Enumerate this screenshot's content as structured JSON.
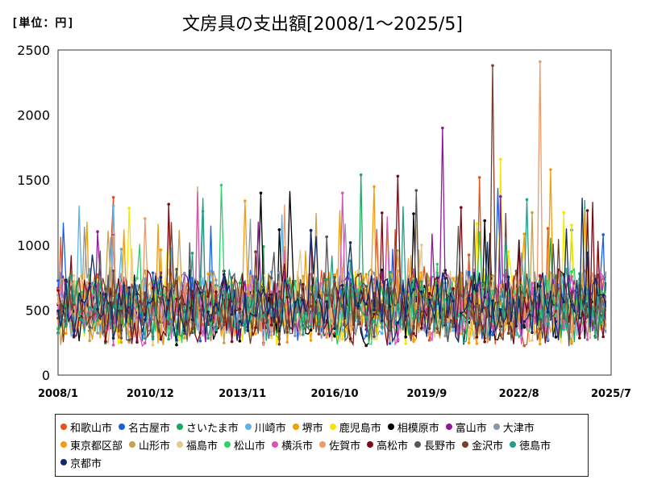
{
  "unit_label": "[単位：円]",
  "chart_data": {
    "type": "line",
    "title": "文房具の支出額[2008/1～2025/5]",
    "xlabel": "",
    "ylabel": "",
    "ylim": [
      0,
      2500
    ],
    "yticks": [
      0,
      500,
      1000,
      1500,
      2000,
      2500
    ],
    "xticks": [
      "2008/1",
      "2010/12",
      "2013/11",
      "2016/10",
      "2019/9",
      "2022/8",
      "2025/7"
    ],
    "x_start": "2008-01",
    "x_end": "2025-07",
    "grid": false,
    "legend_position": "bottom",
    "series": [
      {
        "name": "和歌山市",
        "color": "#e8501c",
        "peak": {
          "date": "2021-05",
          "value": 1520
        }
      },
      {
        "name": "名古屋市",
        "color": "#1a5fe0",
        "peak": {
          "date": "2025-04",
          "value": 1080
        }
      },
      {
        "name": "さいたま市",
        "color": "#1aa860",
        "peak": {
          "date": "2017-08",
          "value": 1540
        }
      },
      {
        "name": "川崎市",
        "color": "#5ab4e8",
        "peak": {
          "date": "2009-10",
          "value": 1300
        }
      },
      {
        "name": "堺市",
        "color": "#f0a000",
        "peak": {
          "date": "2023-08",
          "value": 1580
        }
      },
      {
        "name": "鹿児島市",
        "color": "#f5e600",
        "peak": {
          "date": "2022-01",
          "value": 1660
        }
      },
      {
        "name": "相模原市",
        "color": "#000000",
        "peak": {
          "date": "2014-06",
          "value": 1400
        }
      },
      {
        "name": "富山市",
        "color": "#8e1a9a",
        "peak": {
          "date": "2020-03",
          "value": 1900
        }
      },
      {
        "name": "大津市",
        "color": "#8a96a8",
        "peak": {
          "date": "2012-08",
          "value": 1260
        }
      },
      {
        "name": "東京都区部",
        "color": "#f39c12",
        "peak": {
          "date": "2013-12",
          "value": 1340
        }
      },
      {
        "name": "山形市",
        "color": "#c9a050",
        "peak": {
          "date": "2023-01",
          "value": 1250
        }
      },
      {
        "name": "福島市",
        "color": "#e8c890",
        "peak": {
          "date": "2019-07",
          "value": 1000
        }
      },
      {
        "name": "松山市",
        "color": "#2ed06a",
        "peak": {
          "date": "2013-03",
          "value": 1460
        }
      },
      {
        "name": "横浜市",
        "color": "#d455b8",
        "peak": {
          "date": "2017-01",
          "value": 1400
        }
      },
      {
        "name": "佐賀市",
        "color": "#ec9a6a",
        "peak": {
          "date": "2023-04",
          "value": 2410
        }
      },
      {
        "name": "高松市",
        "color": "#7a0a14",
        "peak": {
          "date": "2018-10",
          "value": 1530
        }
      },
      {
        "name": "長野市",
        "color": "#565656",
        "peak": {
          "date": "2019-05",
          "value": 1420
        }
      },
      {
        "name": "金沢市",
        "color": "#7a3e2a",
        "peak": {
          "date": "2021-10",
          "value": 2380
        }
      },
      {
        "name": "徳島市",
        "color": "#239e86",
        "peak": {
          "date": "2022-11",
          "value": 1350
        }
      },
      {
        "name": "京都市",
        "color": "#0e2a6e",
        "peak": {
          "date": "2024-10",
          "value": 940
        }
      }
    ]
  }
}
